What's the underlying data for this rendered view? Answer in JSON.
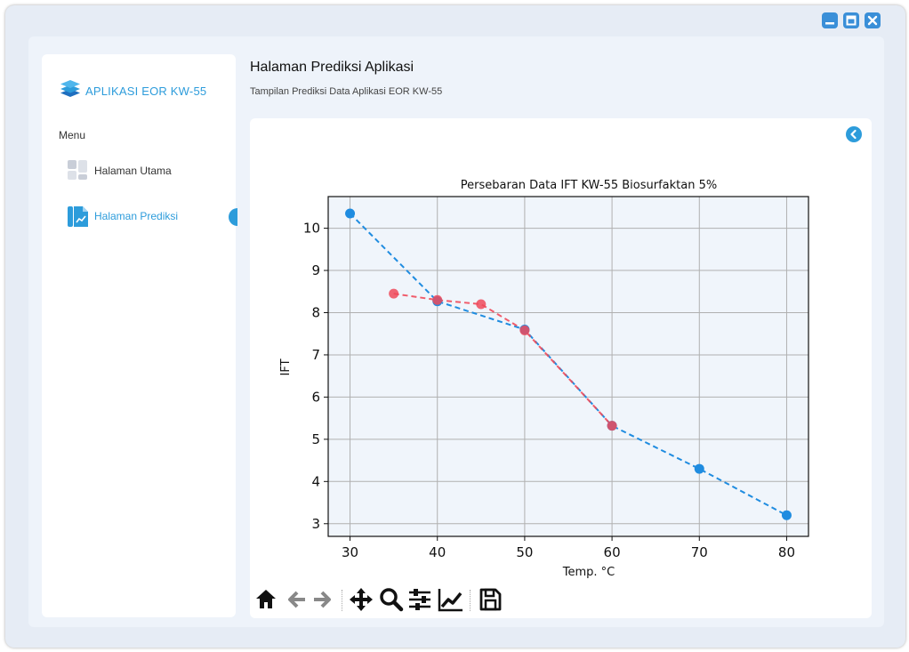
{
  "window_controls": [
    "minimize",
    "maximize",
    "close"
  ],
  "sidebar": {
    "logo_icon": "layers-icon",
    "app_title": "APLIKASI EOR KW-55",
    "menu_label": "Menu",
    "items": [
      {
        "label": "Halaman Utama",
        "icon": "dashboard-icon",
        "active": false
      },
      {
        "label": "Halaman Prediksi",
        "icon": "chart-file-icon",
        "active": true
      }
    ]
  },
  "header": {
    "title": "Halaman Prediksi Aplikasi",
    "subtitle": "Tampilan Prediksi Data Aplikasi EOR KW-55"
  },
  "toolbar": [
    "home-icon",
    "back-arrow-icon",
    "forward-arrow-icon",
    "pan-icon",
    "zoom-icon",
    "configure-subplots-icon",
    "edit-axis-icon",
    "save-icon"
  ],
  "colors": {
    "accent": "#2d9cdb",
    "series_blue": "#1f8ce0",
    "series_red": "#ef4a5a",
    "plot_bg": "#f0f5fb"
  },
  "chart_data": {
    "type": "line",
    "title": "Persebaran Data IFT KW-55 Biosurfaktan 5%",
    "xlabel": "Temp. °C",
    "ylabel": "IFT",
    "xlim": [
      27.5,
      82.5
    ],
    "ylim": [
      2.7,
      10.75
    ],
    "xticks": [
      30,
      40,
      50,
      60,
      70,
      80
    ],
    "yticks": [
      3,
      4,
      5,
      6,
      7,
      8,
      9,
      10
    ],
    "grid": true,
    "series": [
      {
        "color": "#1f8ce0",
        "style": "dashed-marker",
        "x": [
          30,
          40,
          50,
          60,
          70,
          80
        ],
        "y": [
          10.35,
          8.27,
          7.6,
          5.32,
          4.3,
          3.2
        ]
      },
      {
        "color": "#ef4a5a",
        "style": "dashed-marker",
        "x": [
          35,
          40,
          45,
          50,
          60
        ],
        "y": [
          8.45,
          8.3,
          8.2,
          7.58,
          5.32
        ]
      }
    ]
  }
}
